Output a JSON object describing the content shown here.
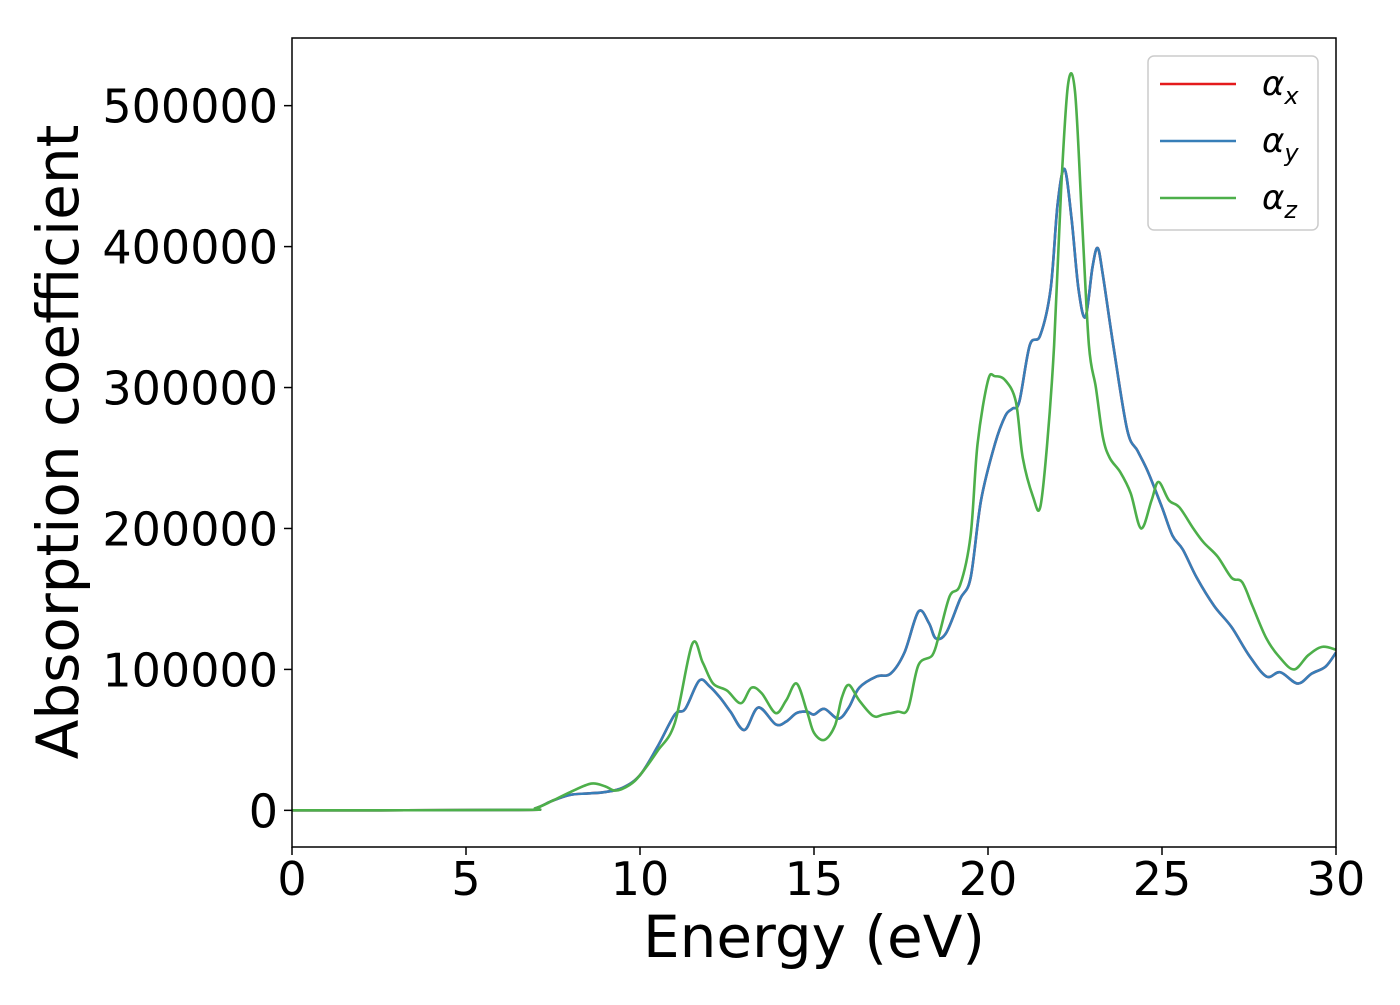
{
  "chart_data": {
    "type": "line",
    "title": "",
    "xlabel": "Energy (eV)",
    "ylabel": "Absorption coefficient",
    "xlim": [
      0,
      30
    ],
    "ylim": [
      -26000,
      548000
    ],
    "x_ticks": [
      0,
      5,
      10,
      15,
      20,
      25,
      30
    ],
    "y_ticks": [
      0,
      100000,
      200000,
      300000,
      400000,
      500000
    ],
    "x_tick_labels": [
      "0",
      "5",
      "10",
      "15",
      "20",
      "25",
      "30"
    ],
    "y_tick_labels": [
      "0",
      "100000",
      "200000",
      "300000",
      "400000",
      "500000"
    ],
    "grid": false,
    "legend_position": "top-right",
    "series": [
      {
        "name": "α",
        "subscript": "x",
        "color": "#e41a1c",
        "points": [
          [
            0,
            0
          ],
          [
            6.5,
            300
          ],
          [
            7.0,
            1500
          ],
          [
            7.5,
            7000
          ],
          [
            8.0,
            11000
          ],
          [
            8.5,
            12000
          ],
          [
            9.0,
            13000
          ],
          [
            9.5,
            16000
          ],
          [
            10.0,
            25000
          ],
          [
            10.5,
            45000
          ],
          [
            11.0,
            68000
          ],
          [
            11.3,
            72000
          ],
          [
            11.7,
            92000
          ],
          [
            12.0,
            88000
          ],
          [
            12.3,
            80000
          ],
          [
            12.6,
            70000
          ],
          [
            13.0,
            57000
          ],
          [
            13.4,
            73000
          ],
          [
            13.9,
            61000
          ],
          [
            14.2,
            63000
          ],
          [
            14.5,
            69000
          ],
          [
            14.8,
            70000
          ],
          [
            15.0,
            68000
          ],
          [
            15.3,
            72000
          ],
          [
            15.7,
            65000
          ],
          [
            16.0,
            73000
          ],
          [
            16.3,
            87000
          ],
          [
            16.8,
            95000
          ],
          [
            17.2,
            97000
          ],
          [
            17.6,
            112000
          ],
          [
            18.0,
            141000
          ],
          [
            18.3,
            133000
          ],
          [
            18.5,
            122000
          ],
          [
            18.8,
            126000
          ],
          [
            19.2,
            150000
          ],
          [
            19.5,
            165000
          ],
          [
            19.8,
            220000
          ],
          [
            20.2,
            260000
          ],
          [
            20.5,
            280000
          ],
          [
            20.7,
            285000
          ],
          [
            20.9,
            290000
          ],
          [
            21.2,
            330000
          ],
          [
            21.5,
            337000
          ],
          [
            21.8,
            370000
          ],
          [
            22.0,
            430000
          ],
          [
            22.2,
            455000
          ],
          [
            22.4,
            420000
          ],
          [
            22.6,
            370000
          ],
          [
            22.8,
            350000
          ],
          [
            23.0,
            385000
          ],
          [
            23.15,
            399000
          ],
          [
            23.3,
            380000
          ],
          [
            23.6,
            330000
          ],
          [
            24.0,
            270000
          ],
          [
            24.3,
            255000
          ],
          [
            24.6,
            240000
          ],
          [
            25.0,
            215000
          ],
          [
            25.3,
            195000
          ],
          [
            25.6,
            185000
          ],
          [
            26.0,
            165000
          ],
          [
            26.5,
            145000
          ],
          [
            27.0,
            130000
          ],
          [
            27.5,
            110000
          ],
          [
            28.0,
            95000
          ],
          [
            28.4,
            98000
          ],
          [
            28.9,
            90000
          ],
          [
            29.3,
            97000
          ],
          [
            29.7,
            102000
          ],
          [
            30.0,
            112000
          ]
        ]
      },
      {
        "name": "α",
        "subscript": "y",
        "color": "#377eb8",
        "points": [
          [
            0,
            0
          ],
          [
            6.5,
            300
          ],
          [
            7.0,
            1500
          ],
          [
            7.5,
            7000
          ],
          [
            8.0,
            11000
          ],
          [
            8.5,
            12000
          ],
          [
            9.0,
            13000
          ],
          [
            9.5,
            16000
          ],
          [
            10.0,
            25000
          ],
          [
            10.5,
            45000
          ],
          [
            11.0,
            68000
          ],
          [
            11.3,
            72000
          ],
          [
            11.7,
            92000
          ],
          [
            12.0,
            88000
          ],
          [
            12.3,
            80000
          ],
          [
            12.6,
            70000
          ],
          [
            13.0,
            57000
          ],
          [
            13.4,
            73000
          ],
          [
            13.9,
            61000
          ],
          [
            14.2,
            63000
          ],
          [
            14.5,
            69000
          ],
          [
            14.8,
            70000
          ],
          [
            15.0,
            68000
          ],
          [
            15.3,
            72000
          ],
          [
            15.7,
            65000
          ],
          [
            16.0,
            73000
          ],
          [
            16.3,
            87000
          ],
          [
            16.8,
            95000
          ],
          [
            17.2,
            97000
          ],
          [
            17.6,
            112000
          ],
          [
            18.0,
            141000
          ],
          [
            18.3,
            133000
          ],
          [
            18.5,
            122000
          ],
          [
            18.8,
            126000
          ],
          [
            19.2,
            150000
          ],
          [
            19.5,
            165000
          ],
          [
            19.8,
            220000
          ],
          [
            20.2,
            260000
          ],
          [
            20.5,
            280000
          ],
          [
            20.7,
            285000
          ],
          [
            20.9,
            290000
          ],
          [
            21.2,
            330000
          ],
          [
            21.5,
            337000
          ],
          [
            21.8,
            370000
          ],
          [
            22.0,
            430000
          ],
          [
            22.2,
            455000
          ],
          [
            22.4,
            420000
          ],
          [
            22.6,
            370000
          ],
          [
            22.8,
            350000
          ],
          [
            23.0,
            385000
          ],
          [
            23.15,
            399000
          ],
          [
            23.3,
            380000
          ],
          [
            23.6,
            330000
          ],
          [
            24.0,
            270000
          ],
          [
            24.3,
            255000
          ],
          [
            24.6,
            240000
          ],
          [
            25.0,
            215000
          ],
          [
            25.3,
            195000
          ],
          [
            25.6,
            185000
          ],
          [
            26.0,
            165000
          ],
          [
            26.5,
            145000
          ],
          [
            27.0,
            130000
          ],
          [
            27.5,
            110000
          ],
          [
            28.0,
            95000
          ],
          [
            28.4,
            98000
          ],
          [
            28.9,
            90000
          ],
          [
            29.3,
            97000
          ],
          [
            29.7,
            102000
          ],
          [
            30.0,
            112000
          ]
        ]
      },
      {
        "name": "α",
        "subscript": "z",
        "color": "#4daf4a",
        "points": [
          [
            0,
            0
          ],
          [
            6.5,
            300
          ],
          [
            7.0,
            1500
          ],
          [
            7.5,
            7000
          ],
          [
            8.0,
            13000
          ],
          [
            8.6,
            19000
          ],
          [
            9.0,
            17000
          ],
          [
            9.3,
            14000
          ],
          [
            9.7,
            18000
          ],
          [
            10.0,
            25000
          ],
          [
            10.5,
            42000
          ],
          [
            11.0,
            62000
          ],
          [
            11.5,
            118000
          ],
          [
            11.8,
            105000
          ],
          [
            12.1,
            90000
          ],
          [
            12.5,
            85000
          ],
          [
            12.9,
            76000
          ],
          [
            13.2,
            87000
          ],
          [
            13.5,
            83000
          ],
          [
            13.9,
            69000
          ],
          [
            14.2,
            78000
          ],
          [
            14.5,
            90000
          ],
          [
            14.8,
            70000
          ],
          [
            15.0,
            55000
          ],
          [
            15.3,
            50000
          ],
          [
            15.6,
            60000
          ],
          [
            15.8,
            80000
          ],
          [
            16.0,
            89000
          ],
          [
            16.3,
            78000
          ],
          [
            16.7,
            67000
          ],
          [
            17.0,
            68000
          ],
          [
            17.4,
            70000
          ],
          [
            17.7,
            72000
          ],
          [
            18.0,
            103000
          ],
          [
            18.4,
            110000
          ],
          [
            18.6,
            125000
          ],
          [
            18.9,
            152000
          ],
          [
            19.2,
            160000
          ],
          [
            19.5,
            195000
          ],
          [
            19.7,
            260000
          ],
          [
            20.0,
            305000
          ],
          [
            20.2,
            308000
          ],
          [
            20.5,
            305000
          ],
          [
            20.8,
            290000
          ],
          [
            21.0,
            250000
          ],
          [
            21.3,
            222000
          ],
          [
            21.5,
            215000
          ],
          [
            21.7,
            260000
          ],
          [
            21.9,
            330000
          ],
          [
            22.1,
            440000
          ],
          [
            22.3,
            515000
          ],
          [
            22.5,
            510000
          ],
          [
            22.7,
            420000
          ],
          [
            22.9,
            330000
          ],
          [
            23.1,
            300000
          ],
          [
            23.3,
            265000
          ],
          [
            23.5,
            250000
          ],
          [
            23.8,
            240000
          ],
          [
            24.1,
            225000
          ],
          [
            24.4,
            200000
          ],
          [
            24.7,
            220000
          ],
          [
            24.9,
            233000
          ],
          [
            25.2,
            220000
          ],
          [
            25.5,
            215000
          ],
          [
            25.9,
            200000
          ],
          [
            26.2,
            190000
          ],
          [
            26.6,
            180000
          ],
          [
            27.0,
            165000
          ],
          [
            27.3,
            162000
          ],
          [
            27.6,
            145000
          ],
          [
            28.0,
            122000
          ],
          [
            28.4,
            108000
          ],
          [
            28.8,
            100000
          ],
          [
            29.2,
            110000
          ],
          [
            29.6,
            116000
          ],
          [
            30.0,
            114000
          ]
        ]
      }
    ]
  }
}
